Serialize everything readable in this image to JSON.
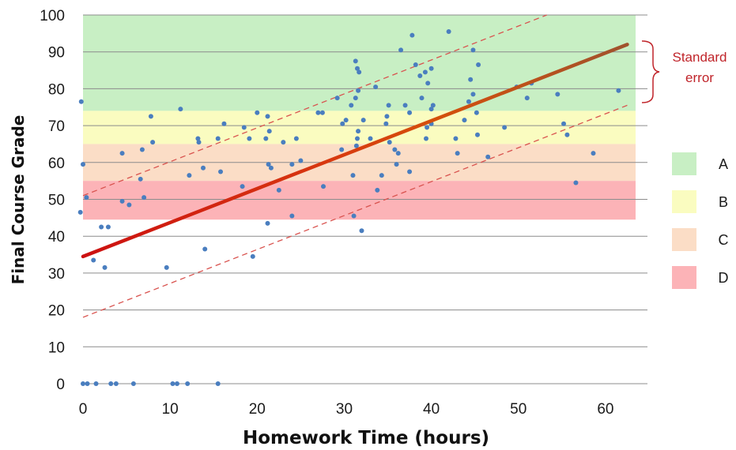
{
  "chart_data": {
    "type": "scatter",
    "xlabel": "Homework Time (hours)",
    "ylabel": "Final Course Grade",
    "xlim": [
      0,
      63
    ],
    "ylim": [
      0,
      100
    ],
    "x_ticks": [
      "0",
      "10",
      "20",
      "30",
      "40",
      "50",
      "60"
    ],
    "y_ticks": [
      "0",
      "10",
      "20",
      "30",
      "40",
      "50",
      "60",
      "70",
      "80",
      "90",
      "100"
    ],
    "grid": "horizontal",
    "grade_bands": [
      {
        "label": "A",
        "from": 74,
        "to": 100,
        "color": "#c8efc4"
      },
      {
        "label": "B",
        "from": 65,
        "to": 74,
        "color": "#fafcc0"
      },
      {
        "label": "C",
        "from": 55,
        "to": 65,
        "color": "#fbddc6"
      },
      {
        "label": "D",
        "from": 44.5,
        "to": 55,
        "color": "#fcb3b7"
      }
    ],
    "legend_position": "right",
    "regression_line": {
      "start": [
        0,
        34.5
      ],
      "end": [
        62.5,
        92
      ],
      "color_start": "#cc1111",
      "color_end": "#a0522d"
    },
    "standard_error": {
      "offset": 16.5,
      "color": "#d9534f"
    },
    "annotation": "Standard error",
    "annotation_lines": [
      "Standard",
      "error"
    ],
    "annotation_color": "#c0242a",
    "point_color": "#4a7ebf",
    "points": [
      [
        -0.2,
        76.5
      ],
      [
        0,
        59.5
      ],
      [
        -0.3,
        46.5
      ],
      [
        0.4,
        50.5
      ],
      [
        1.2,
        33.5
      ],
      [
        2.1,
        42.5
      ],
      [
        2.9,
        42.5
      ],
      [
        2.5,
        31.5
      ],
      [
        4.5,
        62.5
      ],
      [
        4.5,
        49.5
      ],
      [
        5.3,
        48.5
      ],
      [
        6.6,
        55.5
      ],
      [
        6.8,
        63.5
      ],
      [
        7,
        50.5
      ],
      [
        7.8,
        72.5
      ],
      [
        8,
        65.5
      ],
      [
        9.6,
        31.5
      ],
      [
        11.2,
        74.5
      ],
      [
        12.2,
        56.5
      ],
      [
        13.2,
        66.5
      ],
      [
        13.3,
        65.5
      ],
      [
        13.8,
        58.5
      ],
      [
        14,
        36.5
      ],
      [
        15.5,
        66.5
      ],
      [
        15.8,
        57.5
      ],
      [
        16.2,
        70.5
      ],
      [
        18.5,
        69.5
      ],
      [
        18.3,
        53.5
      ],
      [
        19.1,
        66.5
      ],
      [
        19.5,
        34.5
      ],
      [
        20,
        73.5
      ],
      [
        21,
        66.5
      ],
      [
        21.2,
        72.5
      ],
      [
        21.3,
        59.5
      ],
      [
        21.4,
        68.5
      ],
      [
        21.6,
        58.5
      ],
      [
        21.2,
        43.5
      ],
      [
        22.5,
        52.5
      ],
      [
        23,
        65.5
      ],
      [
        24,
        59.5
      ],
      [
        24,
        45.5
      ],
      [
        24.5,
        66.5
      ],
      [
        25,
        60.5
      ],
      [
        27,
        73.5
      ],
      [
        27.5,
        73.5
      ],
      [
        27.6,
        53.5
      ],
      [
        29.2,
        77.5
      ],
      [
        29.7,
        63.5
      ],
      [
        29.8,
        70.5
      ],
      [
        30.2,
        71.5
      ],
      [
        30.8,
        75.5
      ],
      [
        31,
        56.5
      ],
      [
        31.3,
        87.5
      ],
      [
        31.5,
        85.5
      ],
      [
        31.7,
        84.5
      ],
      [
        31.6,
        79.5
      ],
      [
        31.3,
        77.5
      ],
      [
        31.4,
        64.5
      ],
      [
        31.6,
        68.5
      ],
      [
        31.5,
        66.5
      ],
      [
        32.2,
        71.5
      ],
      [
        31.1,
        45.5
      ],
      [
        32,
        41.5
      ],
      [
        33,
        66.5
      ],
      [
        33.6,
        80.5
      ],
      [
        33.8,
        52.5
      ],
      [
        34.3,
        56.5
      ],
      [
        34.8,
        70.5
      ],
      [
        34.9,
        72.5
      ],
      [
        35.1,
        75.5
      ],
      [
        35.2,
        65.5
      ],
      [
        35.8,
        63.5
      ],
      [
        36,
        59.5
      ],
      [
        36.2,
        62.5
      ],
      [
        36.5,
        90.5
      ],
      [
        37,
        75.5
      ],
      [
        37.5,
        73.5
      ],
      [
        37.5,
        57.5
      ],
      [
        37.8,
        94.5
      ],
      [
        38.2,
        86.5
      ],
      [
        38.7,
        83.5
      ],
      [
        38.9,
        77.5
      ],
      [
        39.3,
        84.5
      ],
      [
        39.5,
        69.5
      ],
      [
        39.6,
        81.5
      ],
      [
        39.4,
        66.5
      ],
      [
        40,
        85.5
      ],
      [
        40,
        70.5
      ],
      [
        40,
        74.5
      ],
      [
        40.2,
        75.5
      ],
      [
        42,
        95.5
      ],
      [
        42.8,
        66.5
      ],
      [
        43,
        62.5
      ],
      [
        43.8,
        71.5
      ],
      [
        44.3,
        76.5
      ],
      [
        44.5,
        82.5
      ],
      [
        44.8,
        90.5
      ],
      [
        44.8,
        78.5
      ],
      [
        45.2,
        73.5
      ],
      [
        45.4,
        86.5
      ],
      [
        45.3,
        67.5
      ],
      [
        46.5,
        61.5
      ],
      [
        48.4,
        69.5
      ],
      [
        49.8,
        80.5
      ],
      [
        51,
        77.5
      ],
      [
        51.5,
        81.5
      ],
      [
        54.5,
        78.5
      ],
      [
        55.2,
        70.5
      ],
      [
        55.6,
        67.5
      ],
      [
        56.6,
        54.5
      ],
      [
        58.6,
        62.5
      ],
      [
        61.5,
        79.5
      ],
      [
        0,
        0
      ],
      [
        0.5,
        0
      ],
      [
        1.5,
        0
      ],
      [
        3.2,
        0
      ],
      [
        3.8,
        0
      ],
      [
        5.8,
        0
      ],
      [
        10.3,
        0
      ],
      [
        10.8,
        0
      ],
      [
        12,
        0
      ],
      [
        15.5,
        0
      ]
    ]
  }
}
